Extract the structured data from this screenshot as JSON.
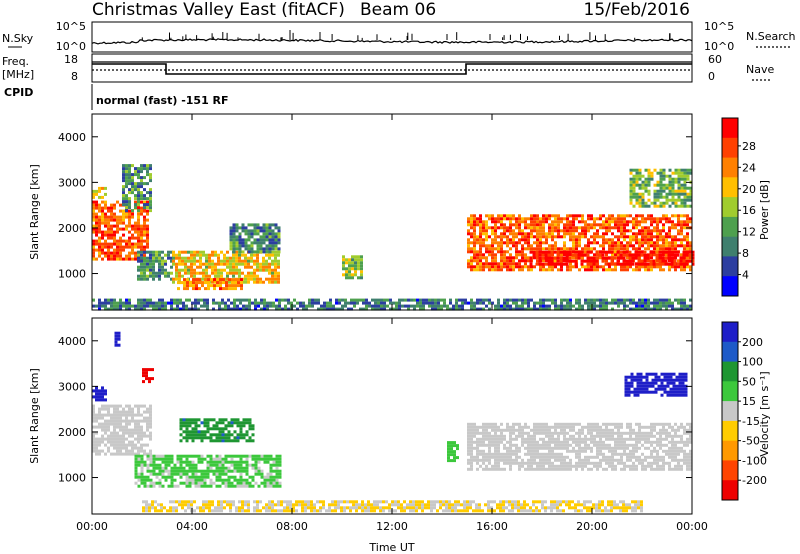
{
  "header": {
    "station": "Christmas Valley East (fitACF)",
    "beam": "Beam 06",
    "date": "15/Feb/2016"
  },
  "noise_panel": {
    "left_label": "N.Sky",
    "left_ticks": [
      "10^5",
      "10^0"
    ],
    "right_label": "N.Search",
    "right_ticks": [
      "10^5",
      "10^0"
    ]
  },
  "freq_panel": {
    "left_label_1": "Freq.",
    "left_label_2": "[MHz]",
    "left_ticks": [
      "18",
      "8"
    ],
    "right_label": "Nave",
    "right_ticks": [
      "60",
      "0"
    ],
    "cpid_label": "CPID",
    "cpid_text": "normal (fast) -151 RF"
  },
  "colors": {
    "power": [
      "#0000ff",
      "#2c3ea0",
      "#3f7f6e",
      "#4ea04e",
      "#a0cc2e",
      "#ffbf00",
      "#ff8000",
      "#ff4000",
      "#ff0000"
    ],
    "velocity": [
      "#1e1ec8",
      "#1e5ac8",
      "#1e9632",
      "#3cc83c",
      "#c8c8c8",
      "#ffcc00",
      "#ff9900",
      "#ff4400",
      "#ee0000"
    ],
    "ground_scatter": "#c8c8c8"
  },
  "chart_data": [
    {
      "type": "heatmap",
      "title": "",
      "ylabel": "Slant Range [km]",
      "xlabel": "",
      "x_ticks": [
        "00:00",
        "04:00",
        "08:00",
        "12:00",
        "16:00",
        "20:00",
        "00:00"
      ],
      "y_ticks": [
        "1000",
        "2000",
        "3000",
        "4000"
      ],
      "ylim": [
        200,
        4500
      ],
      "xlim": [
        0,
        24
      ],
      "colorbar": {
        "label": "Power [dB]",
        "ticks": [
          "4",
          "8",
          "12",
          "16",
          "20",
          "24",
          "28"
        ],
        "range": [
          0,
          30
        ]
      },
      "regions": [
        {
          "t0": 0.0,
          "t1": 2.2,
          "r0": 1300,
          "r1": 2600,
          "value": 24
        },
        {
          "t0": 1.2,
          "t1": 2.3,
          "r0": 2400,
          "r1": 3400,
          "value": 10
        },
        {
          "t0": 0.0,
          "t1": 0.6,
          "r0": 2700,
          "r1": 2900,
          "value": 18
        },
        {
          "t0": 1.8,
          "t1": 3.2,
          "r0": 900,
          "r1": 1500,
          "value": 10
        },
        {
          "t0": 3.2,
          "t1": 7.5,
          "r0": 800,
          "r1": 1500,
          "value": 18
        },
        {
          "t0": 3.4,
          "t1": 6.0,
          "r0": 650,
          "r1": 900,
          "value": 22
        },
        {
          "t0": 5.5,
          "t1": 7.5,
          "r0": 1500,
          "r1": 2100,
          "value": 9
        },
        {
          "t0": 10.0,
          "t1": 10.8,
          "r0": 900,
          "r1": 1400,
          "value": 14
        },
        {
          "t0": 15.0,
          "t1": 24.0,
          "r0": 1100,
          "r1": 2300,
          "value": 24
        },
        {
          "t0": 17.5,
          "t1": 24.0,
          "r0": 1200,
          "r1": 1500,
          "value": 29
        },
        {
          "t0": 21.5,
          "t1": 24.0,
          "r0": 2500,
          "r1": 3300,
          "value": 13
        },
        {
          "t0": 0.0,
          "t1": 24.0,
          "r0": 250,
          "r1": 450,
          "value": 8
        }
      ]
    },
    {
      "type": "heatmap",
      "title": "",
      "ylabel": "Slant Range [km]",
      "xlabel": "Time UT",
      "x_ticks": [
        "00:00",
        "04:00",
        "08:00",
        "12:00",
        "16:00",
        "20:00",
        "00:00"
      ],
      "y_ticks": [
        "1000",
        "2000",
        "3000",
        "4000"
      ],
      "ylim": [
        200,
        4500
      ],
      "xlim": [
        0,
        24
      ],
      "colorbar": {
        "label": "Velocity [m s⁻¹]",
        "ticks": [
          "200",
          "100",
          "50",
          "15",
          "-15",
          "-50",
          "-100",
          "-200"
        ],
        "range": [
          -250,
          250
        ]
      },
      "regions": [
        {
          "t0": 0.0,
          "t1": 0.6,
          "r0": 2700,
          "r1": 3000,
          "value": 220
        },
        {
          "t0": 0.9,
          "t1": 1.1,
          "r0": 3900,
          "r1": 4200,
          "value": 220
        },
        {
          "t0": 2.0,
          "t1": 2.4,
          "r0": 3100,
          "r1": 3400,
          "value": -230
        },
        {
          "t0": 0.0,
          "t1": 2.3,
          "r0": 1500,
          "r1": 2600,
          "value": 0
        },
        {
          "t0": 1.7,
          "t1": 7.5,
          "r0": 800,
          "r1": 1500,
          "value": 40
        },
        {
          "t0": 3.5,
          "t1": 6.5,
          "r0": 1800,
          "r1": 2300,
          "value": 120
        },
        {
          "t0": 15.0,
          "t1": 24.0,
          "r0": 1200,
          "r1": 2200,
          "value": 0
        },
        {
          "t0": 21.3,
          "t1": 23.8,
          "r0": 2800,
          "r1": 3300,
          "value": 220
        },
        {
          "t0": 2.0,
          "t1": 22.0,
          "r0": 250,
          "r1": 500,
          "value": -30
        },
        {
          "t0": 14.2,
          "t1": 14.6,
          "r0": 1400,
          "r1": 1800,
          "value": 60
        }
      ]
    }
  ]
}
